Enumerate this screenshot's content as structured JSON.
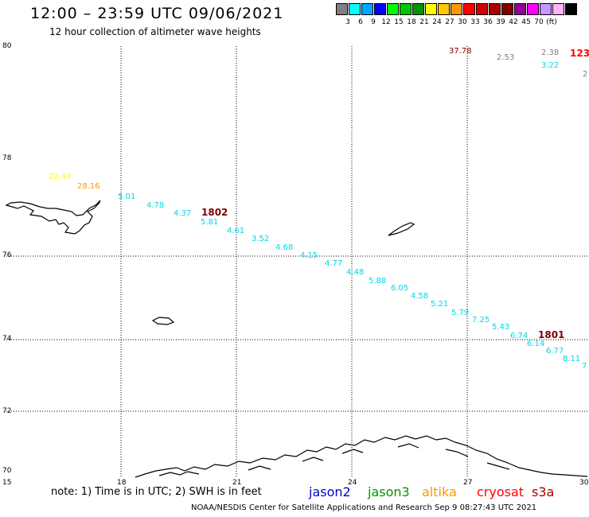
{
  "header": {
    "title": "12:00 – 23:59 UTC 09/06/2021",
    "subtitle": "12 hour collection of altimeter wave heights"
  },
  "scale": {
    "colors": [
      "#808080",
      "#00ffff",
      "#00a8ff",
      "#0000ff",
      "#00ff00",
      "#00c800",
      "#009600",
      "#ffff00",
      "#ffc800",
      "#ff9600",
      "#ff0000",
      "#d20000",
      "#aa0000",
      "#800000",
      "#960096",
      "#ff00ff",
      "#c896ff",
      "#ffb4ff",
      "#000000"
    ],
    "labels": [
      "3",
      "6",
      "9",
      "12",
      "15",
      "18",
      "21",
      "24",
      "27",
      "30",
      "33",
      "36",
      "39",
      "42",
      "45",
      "70",
      "(ft)"
    ]
  },
  "axes": {
    "lon_labels": [
      "15",
      "18",
      "21",
      "24",
      "27",
      "30"
    ],
    "lat_labels": [
      "80",
      "78",
      "76",
      "74",
      "72",
      "70"
    ]
  },
  "tracks": [
    {
      "text": "22.44",
      "color": "#ffff00"
    },
    {
      "text": "28.16",
      "color": "#ff9600"
    },
    {
      "text": "5.01",
      "color": "#00d8e8"
    },
    {
      "text": "4.78",
      "color": "#00d8e8"
    },
    {
      "text": "4.37",
      "color": "#00d8e8"
    },
    {
      "text": "1802",
      "color": "#800000"
    },
    {
      "text": "5.81",
      "color": "#00d8e8"
    },
    {
      "text": "4.61",
      "color": "#00d8e8"
    },
    {
      "text": "3.52",
      "color": "#00d8e8"
    },
    {
      "text": "4.68",
      "color": "#00d8e8"
    },
    {
      "text": "4.15",
      "color": "#00d8e8"
    },
    {
      "text": "4.77",
      "color": "#00d8e8"
    },
    {
      "text": "4.48",
      "color": "#00d8e8"
    },
    {
      "text": "5.88",
      "color": "#00d8e8"
    },
    {
      "text": "6.05",
      "color": "#00d8e8"
    },
    {
      "text": "4.58",
      "color": "#00d8e8"
    },
    {
      "text": "5.21",
      "color": "#00d8e8"
    },
    {
      "text": "5.79",
      "color": "#00d8e8"
    },
    {
      "text": "7.25",
      "color": "#00d8e8"
    },
    {
      "text": "5.43",
      "color": "#00d8e8"
    },
    {
      "text": "6.74",
      "color": "#00d8e8"
    },
    {
      "text": "1801",
      "color": "#800000"
    },
    {
      "text": "6.14",
      "color": "#00d8e8"
    },
    {
      "text": "6.77",
      "color": "#00d8e8"
    },
    {
      "text": "8.11",
      "color": "#00d8e8"
    },
    {
      "text": "7",
      "color": "#00d8e8"
    },
    {
      "text": "37.78",
      "color": "#800000"
    },
    {
      "text": "2.53",
      "color": "#808080"
    },
    {
      "text": "2.38",
      "color": "#808080"
    },
    {
      "text": "123",
      "color": "#ff0000"
    },
    {
      "text": "3.22",
      "color": "#00d8e8"
    },
    {
      "text": "2",
      "color": "#808080"
    }
  ],
  "footer": {
    "note": "note: 1) Time is in UTC; 2) SWH is in feet",
    "satellites": [
      {
        "name": "jason2",
        "color": "#0000cc"
      },
      {
        "name": "jason3",
        "color": "#009600"
      },
      {
        "name": "altika",
        "color": "#ff9600"
      },
      {
        "name": "cryosat",
        "color": "#ff0000"
      },
      {
        "name": "s3a",
        "color": "#aa0000"
      }
    ],
    "credit": "NOAA/NESDIS Center for Satellite Applications and Research    Sep  9 08:27:43 UTC 2021"
  }
}
